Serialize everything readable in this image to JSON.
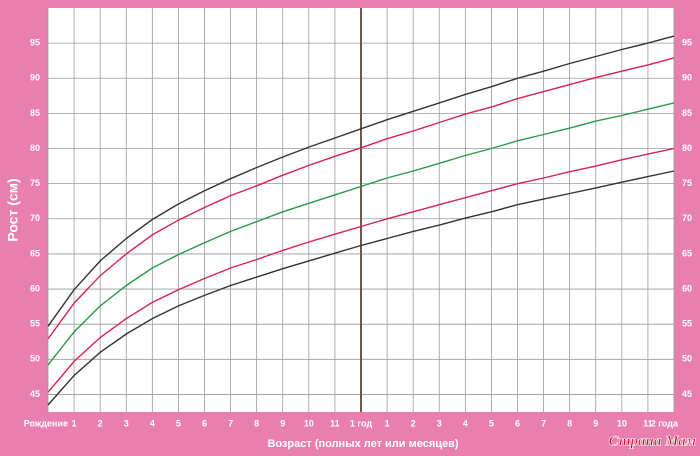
{
  "chart_data": {
    "type": "line",
    "y_label": "Рост (см)",
    "x_label": "Возраст (полных лет или месяцев)",
    "watermark": "Страна Мам",
    "x": [
      0,
      1,
      2,
      3,
      4,
      5,
      6,
      7,
      8,
      9,
      10,
      11,
      12,
      13,
      14,
      15,
      16,
      17,
      18,
      19,
      20,
      21,
      22,
      23,
      24
    ],
    "xlim": [
      0,
      24
    ],
    "xticks": [
      {
        "value": 0,
        "label": "Рождение"
      },
      1,
      2,
      3,
      4,
      5,
      6,
      7,
      8,
      9,
      10,
      11,
      {
        "value": 12,
        "label": "1 год"
      },
      {
        "value": 13,
        "label": "1"
      },
      {
        "value": 14,
        "label": "2"
      },
      {
        "value": 15,
        "label": "3"
      },
      {
        "value": 16,
        "label": "4"
      },
      {
        "value": 17,
        "label": "5"
      },
      {
        "value": 18,
        "label": "6"
      },
      {
        "value": 19,
        "label": "7"
      },
      {
        "value": 20,
        "label": "8"
      },
      {
        "value": 21,
        "label": "9"
      },
      {
        "value": 22,
        "label": "10"
      },
      {
        "value": 23,
        "label": "11"
      },
      {
        "value": 24,
        "label": "2 года"
      }
    ],
    "emphasis_x": 12,
    "ylim": [
      42.5,
      100
    ],
    "yticks": [
      45,
      50,
      55,
      60,
      65,
      70,
      75,
      80,
      85,
      90,
      95
    ],
    "grid": true,
    "series": [
      {
        "color": "#333333",
        "values": [
          54.7,
          59.9,
          64.0,
          67.2,
          69.9,
          72.1,
          74.0,
          75.7,
          77.3,
          78.8,
          80.2,
          81.5,
          82.8,
          84.1,
          85.3,
          86.5,
          87.7,
          88.8,
          90.0,
          91.0,
          92.1,
          93.1,
          94.1,
          95.0,
          96.0
        ]
      },
      {
        "color": "#d8214f",
        "values": [
          52.9,
          58.0,
          61.9,
          65.0,
          67.7,
          69.8,
          71.6,
          73.3,
          74.7,
          76.2,
          77.6,
          78.9,
          80.1,
          81.4,
          82.5,
          83.7,
          84.9,
          85.9,
          87.1,
          88.1,
          89.1,
          90.1,
          91.0,
          91.9,
          92.9
        ]
      },
      {
        "color": "#2a9a48",
        "values": [
          49.2,
          53.9,
          57.6,
          60.5,
          63.0,
          64.9,
          66.6,
          68.2,
          69.6,
          71.0,
          72.2,
          73.4,
          74.6,
          75.8,
          76.8,
          77.9,
          79.0,
          80.0,
          81.1,
          82.0,
          82.9,
          83.9,
          84.7,
          85.6,
          86.5
        ]
      },
      {
        "color": "#d8214f",
        "values": [
          45.3,
          49.7,
          53.1,
          55.8,
          58.1,
          59.9,
          61.5,
          63.0,
          64.2,
          65.5,
          66.7,
          67.8,
          68.9,
          70.0,
          71.0,
          72.0,
          73.0,
          74.0,
          75.0,
          75.8,
          76.7,
          77.5,
          78.4,
          79.2,
          80.0
        ]
      },
      {
        "color": "#333333",
        "values": [
          43.5,
          47.7,
          51.0,
          53.6,
          55.8,
          57.6,
          59.1,
          60.5,
          61.7,
          62.9,
          64.0,
          65.1,
          66.2,
          67.2,
          68.2,
          69.1,
          70.1,
          71.0,
          72.0,
          72.8,
          73.6,
          74.4,
          75.2,
          76.0,
          76.8
        ]
      }
    ]
  }
}
